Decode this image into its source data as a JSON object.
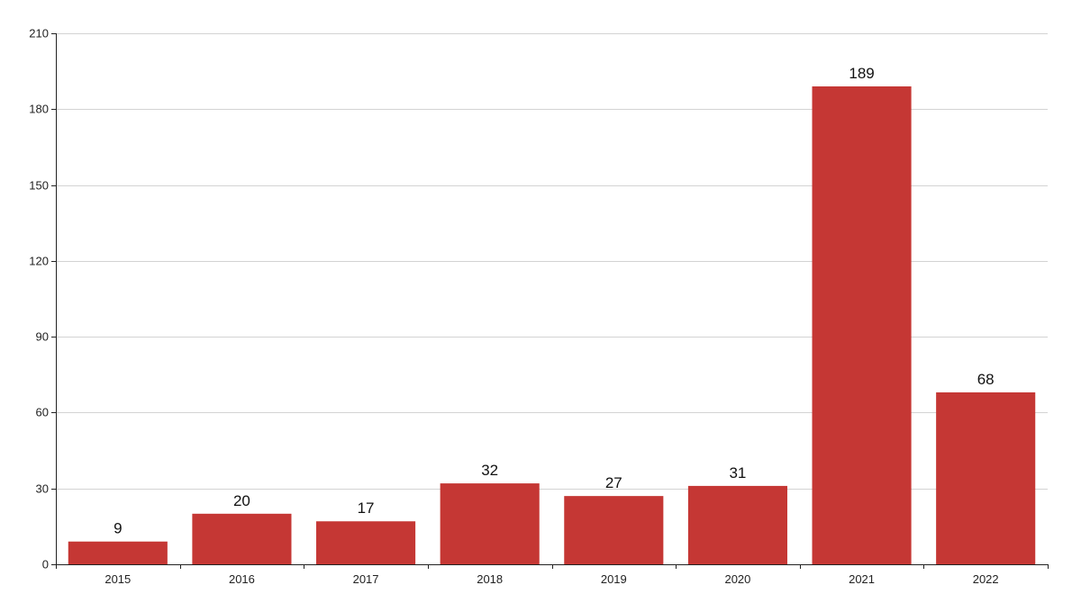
{
  "chart_data": {
    "type": "bar",
    "title": "",
    "xlabel": "",
    "ylabel": "",
    "categories": [
      "2015",
      "2016",
      "2017",
      "2018",
      "2019",
      "2020",
      "2021",
      "2022"
    ],
    "values": [
      9,
      20,
      17,
      32,
      27,
      31,
      189,
      68
    ],
    "ylim": [
      0,
      210
    ],
    "yticks": [
      0,
      30,
      60,
      90,
      120,
      150,
      180,
      210
    ],
    "grid": true,
    "data_labels": true,
    "bar_color": "#c53734",
    "gridline_color": "#d3d3d3"
  }
}
